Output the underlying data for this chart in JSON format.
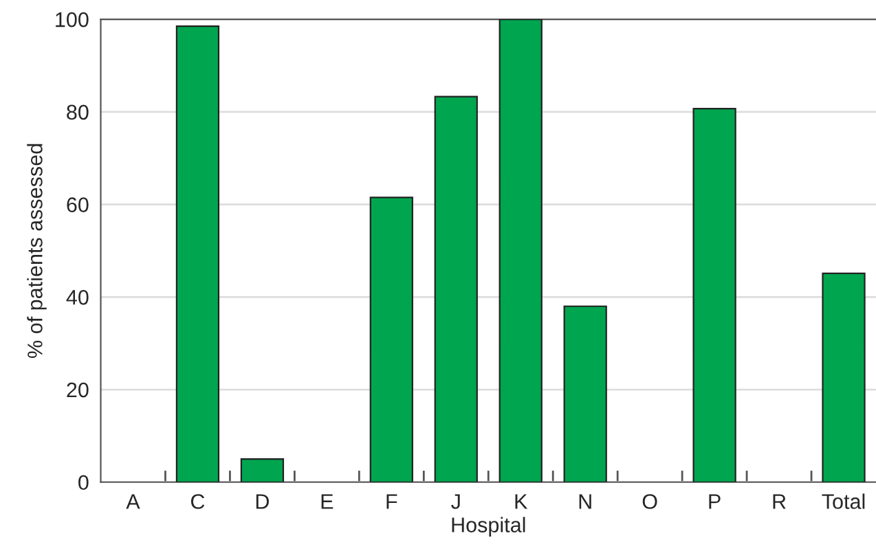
{
  "chart_data": {
    "type": "bar",
    "xlabel": "Hospital",
    "ylabel": "% of patients assessed",
    "categories": [
      "A",
      "C",
      "D",
      "E",
      "F",
      "J",
      "K",
      "N",
      "O",
      "P",
      "R",
      "Total"
    ],
    "values": [
      0,
      98.5,
      5,
      0,
      61.5,
      83.3,
      100,
      38,
      0,
      80.7,
      0,
      45.1
    ],
    "color": "#00a54f",
    "ylim": [
      0,
      100
    ],
    "yticks": [
      0,
      20,
      40,
      60,
      80,
      100
    ],
    "grid": "y"
  }
}
